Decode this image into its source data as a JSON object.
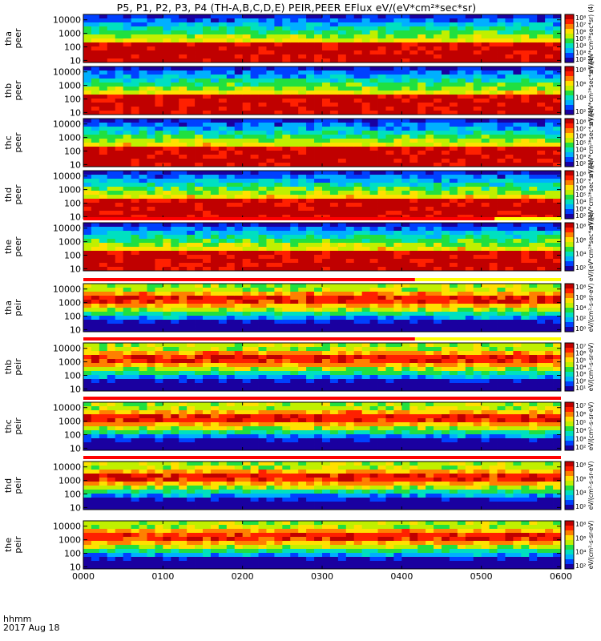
{
  "title": "P5, P1, P2, P3, P4 (TH-A,B,C,D,E) PEIR,PEER EFlux eV/(eV*cm²*sec*sr)",
  "footer": {
    "time_label": "hhmm",
    "date_label": "2017 Aug 18"
  },
  "chart_data": {
    "type": "heatmap",
    "x_axis": {
      "ticks": [
        "0000",
        "0100",
        "0200",
        "0300",
        "0400",
        "0500",
        "0600"
      ],
      "range": [
        "00:00",
        "06:00"
      ]
    },
    "y_scale": "log",
    "y_range_eV": [
      7,
      25000
    ],
    "y_ticks": [
      "10000",
      "1000",
      "100",
      "10"
    ],
    "panels": [
      {
        "probe": "tha",
        "species": "peer",
        "label_top": "tha",
        "label_bottom": "peer",
        "colorbar_ticks": [
          "10⁸",
          "10⁷",
          "10⁶",
          "10⁵",
          "10⁴",
          "10³",
          "10²"
        ],
        "colorbar_label": "eV/(eV*cm²*sec*sr) (4)",
        "flag_bar": {
          "visible": false
        }
      },
      {
        "probe": "thb",
        "species": "peer",
        "label_top": "thb",
        "label_bottom": "peer",
        "colorbar_ticks": [
          "10⁸",
          "10⁶",
          "10⁴",
          "10²"
        ],
        "colorbar_label": "eV/(eV*cm²*sec*sr) (4)",
        "flag_bar": {
          "visible": false
        }
      },
      {
        "probe": "thc",
        "species": "peer",
        "label_top": "thc",
        "label_bottom": "peer",
        "colorbar_ticks": [
          "10⁸",
          "10⁷",
          "10⁶",
          "10⁵",
          "10⁴",
          "10³",
          "10²"
        ],
        "colorbar_label": "eV/(eV*cm²*sec*sr) (4)",
        "flag_bar": {
          "visible": false
        }
      },
      {
        "probe": "thd",
        "species": "peer",
        "label_top": "thd",
        "label_bottom": "peer",
        "colorbar_ticks": [
          "10⁸",
          "10⁷",
          "10⁶",
          "10⁵",
          "10⁴",
          "10³",
          "10²"
        ],
        "colorbar_label": "eV/(eV*cm²*sec*sr) (4)",
        "flag_bar": {
          "visible": false
        }
      },
      {
        "probe": "the",
        "species": "peer",
        "label_top": "the",
        "label_bottom": "peer",
        "colorbar_ticks": [
          "10⁸",
          "10⁶",
          "10⁴",
          "10²"
        ],
        "colorbar_label": "eV/(eV*cm²*sec*sr) (4)",
        "flag_bar": {
          "visible": true,
          "red_until_hhmm": "0510"
        }
      },
      {
        "probe": "tha",
        "species": "peir",
        "label_top": "tha",
        "label_bottom": "peir",
        "colorbar_ticks": [
          "10⁸",
          "10⁶",
          "10⁴",
          "10²",
          "10⁰"
        ],
        "colorbar_label": "eV/(cm²-s-sr-eV)",
        "flag_bar": {
          "visible": true,
          "red_until_hhmm": "0410"
        }
      },
      {
        "probe": "thb",
        "species": "peir",
        "label_top": "thb",
        "label_bottom": "peir",
        "colorbar_ticks": [
          "10⁷",
          "10⁶",
          "10⁵",
          "10⁴",
          "10³",
          "10²",
          "10¹"
        ],
        "colorbar_label": "eV/(cm²-s-sr-eV)",
        "flag_bar": {
          "visible": true,
          "red_until_hhmm": "0410"
        }
      },
      {
        "probe": "thc",
        "species": "peir",
        "label_top": "thc",
        "label_bottom": "peir",
        "colorbar_ticks": [
          "10⁷",
          "10⁶",
          "10⁵",
          "10⁴",
          "10³",
          "10²"
        ],
        "colorbar_label": "eV/(cm²-s-sr-eV)",
        "flag_bar": {
          "visible": true,
          "red_until_hhmm": "0600"
        }
      },
      {
        "probe": "thd",
        "species": "peir",
        "label_top": "thd",
        "label_bottom": "peir",
        "colorbar_ticks": [
          "10⁸",
          "10⁶",
          "10⁴",
          "10²"
        ],
        "colorbar_label": "eV/(cm²-s-sr-eV)",
        "flag_bar": {
          "visible": true,
          "red_until_hhmm": "0600"
        }
      },
      {
        "probe": "the",
        "species": "peir",
        "label_top": "the",
        "label_bottom": "peir",
        "colorbar_ticks": [
          "10⁸",
          "10⁶",
          "10⁴",
          "10²"
        ],
        "colorbar_label": "eV/(cm²-s-sr-eV)",
        "flag_bar": {
          "visible": false
        }
      }
    ]
  }
}
